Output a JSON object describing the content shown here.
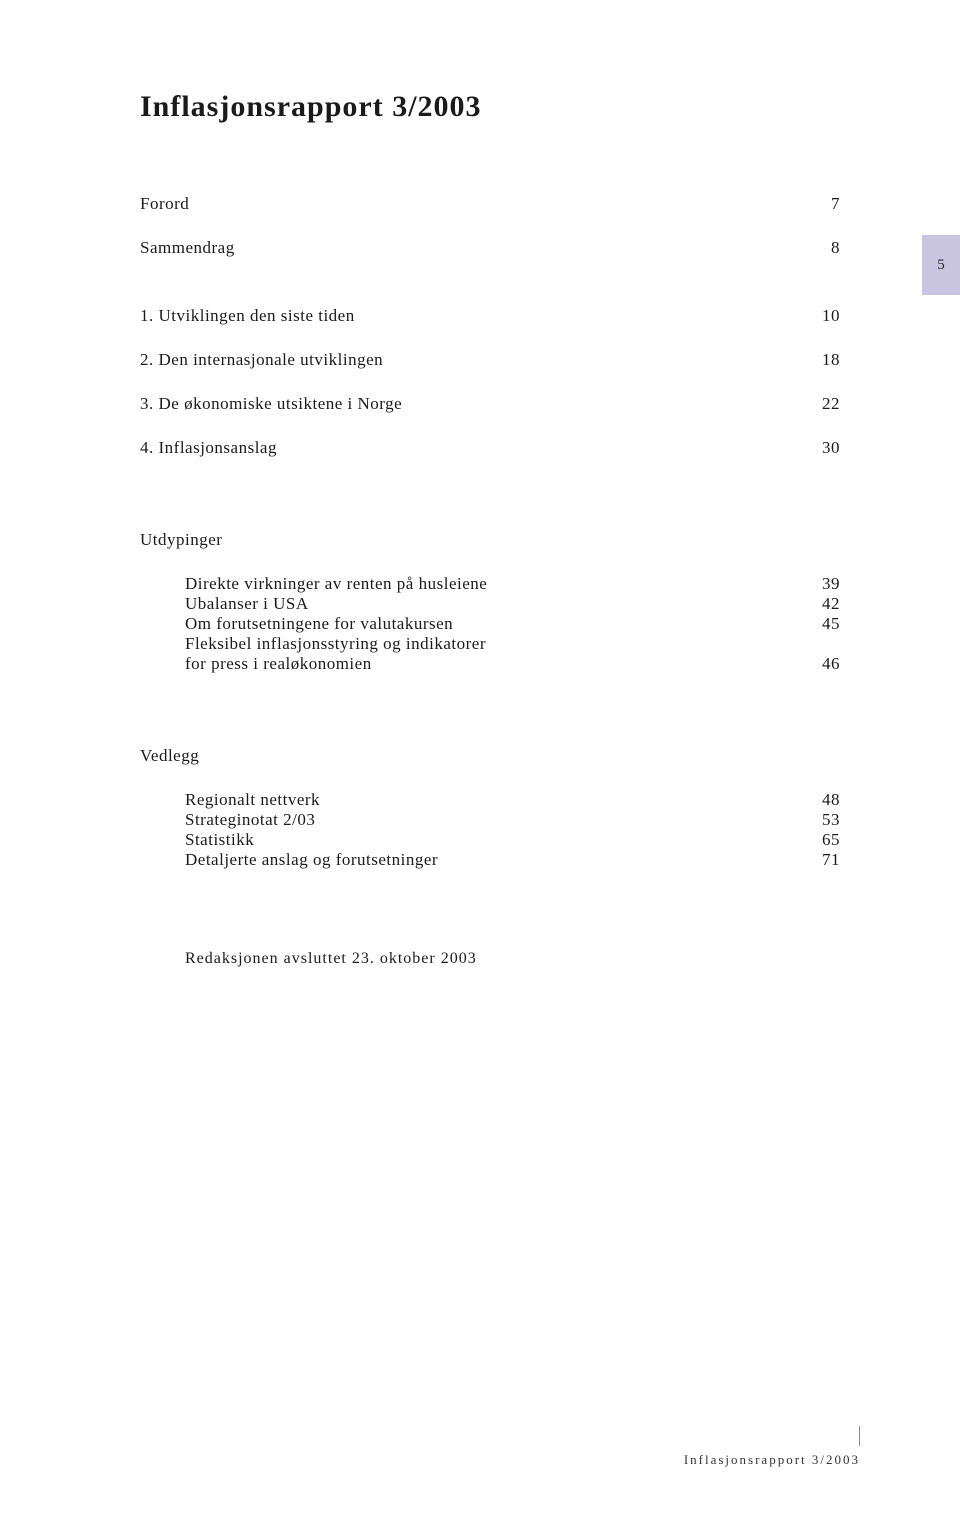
{
  "title": "Inflasjonsrapport 3/2003",
  "top_entries": [
    {
      "label": "Forord",
      "page": "7"
    },
    {
      "label": "Sammendrag",
      "page": "8"
    }
  ],
  "numbered_entries": [
    {
      "label": "1. Utviklingen den siste tiden",
      "page": "10"
    },
    {
      "label": "2. Den internasjonale utviklingen",
      "page": "18"
    },
    {
      "label": "3. De økonomiske utsiktene i Norge",
      "page": "22"
    },
    {
      "label": "4. Inflasjonsanslag",
      "page": "30"
    }
  ],
  "utdypinger_heading": "Utdypinger",
  "utdypinger": [
    {
      "label": "Direkte virkninger av renten på husleiene",
      "page": "39"
    },
    {
      "label": "Ubalanser i USA",
      "page": "42"
    },
    {
      "label": "Om forutsetningene for valutakursen",
      "page": "45"
    },
    {
      "label": "Fleksibel inflasjonsstyring og indikatorer",
      "page": ""
    },
    {
      "label": "for press i realøkonomien",
      "page": "46"
    }
  ],
  "vedlegg_heading": "Vedlegg",
  "vedlegg": [
    {
      "label": "Regionalt nettverk",
      "page": "48"
    },
    {
      "label": "Strateginotat 2/03",
      "page": "53"
    },
    {
      "label": "Statistikk",
      "page": "65"
    },
    {
      "label": "Detaljerte anslag og forutsetninger",
      "page": "71"
    }
  ],
  "closing_line": "Redaksjonen avsluttet 23. oktober 2003",
  "side_page_number": "5",
  "footer_text": "Inflasjonsrapport 3/2003"
}
